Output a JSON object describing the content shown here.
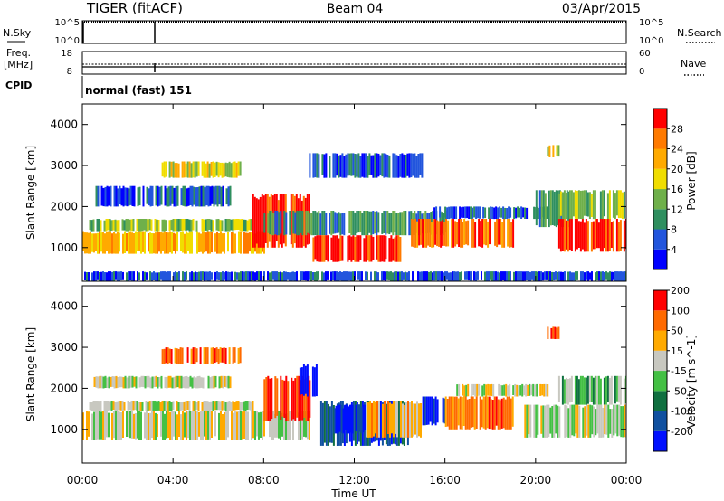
{
  "header": {
    "title": "TIGER (fitACF)",
    "beam": "Beam 04",
    "date": "03/Apr/2015"
  },
  "top_panels": {
    "nsky_label": "N.Sky",
    "nsky_ticks": [
      "10^5",
      "10^0"
    ],
    "nsearch_label": "N.Search",
    "nsearch_ticks": [
      "10^5",
      "10^0"
    ],
    "freq_label_1": "Freq.",
    "freq_label_2": "[MHz]",
    "freq_ticks": [
      "18",
      "8"
    ],
    "nave_label": "Nave",
    "nave_ticks": [
      "60",
      "0"
    ],
    "cpid_label": "CPID",
    "cpid_text": "normal (fast) 151"
  },
  "colors": {
    "power": [
      "#0000ff",
      "#2255dd",
      "#2f8f5f",
      "#6fb04a",
      "#f0dd00",
      "#ffaa00",
      "#ff7a00",
      "#ff0000"
    ],
    "velocity": [
      "#0010ff",
      "#1050a0",
      "#107040",
      "#44c044",
      "#c8c8c0",
      "#ffaa00",
      "#ff6a00",
      "#ff0000"
    ]
  },
  "chart_data": [
    {
      "type": "heatmap",
      "parameter": "Power",
      "ylabel": "Slant Range [km]",
      "yticks": [
        "4000",
        "3000",
        "2000",
        "1000"
      ],
      "ylim": [
        180,
        4500
      ],
      "xlim": [
        0,
        24
      ],
      "colorbar_label": "Power [dB]",
      "colorbar_ticks": [
        "28",
        "24",
        "20",
        "16",
        "12",
        "8",
        "4"
      ],
      "bands": [
        {
          "t0": 0.0,
          "t1": 8.0,
          "r0": 850,
          "r1": 1400,
          "level": 5
        },
        {
          "t0": 0.3,
          "t1": 7.5,
          "r0": 1400,
          "r1": 1700,
          "level": 3
        },
        {
          "t0": 0.5,
          "t1": 6.5,
          "r0": 2000,
          "r1": 2500,
          "level": 1
        },
        {
          "t0": 3.5,
          "t1": 7.0,
          "r0": 2700,
          "r1": 3100,
          "level": 4
        },
        {
          "t0": 7.5,
          "t1": 10.0,
          "r0": 1000,
          "r1": 2300,
          "level": 7
        },
        {
          "t0": 8.0,
          "t1": 16.0,
          "r0": 1300,
          "r1": 1900,
          "level": 2
        },
        {
          "t0": 10.0,
          "t1": 14.0,
          "r0": 650,
          "r1": 1300,
          "level": 7
        },
        {
          "t0": 10.0,
          "t1": 15.0,
          "r0": 2700,
          "r1": 3300,
          "level": 1
        },
        {
          "t0": 14.5,
          "t1": 19.0,
          "r0": 1000,
          "r1": 1700,
          "level": 6
        },
        {
          "t0": 15.5,
          "t1": 20.5,
          "r0": 1700,
          "r1": 2000,
          "level": 1
        },
        {
          "t0": 20.0,
          "t1": 21.5,
          "r0": 1500,
          "r1": 2400,
          "level": 2
        },
        {
          "t0": 20.5,
          "t1": 21.0,
          "r0": 3200,
          "r1": 3500,
          "level": 4
        },
        {
          "t0": 21.0,
          "t1": 24.0,
          "r0": 900,
          "r1": 1700,
          "level": 7
        },
        {
          "t0": 21.0,
          "t1": 24.0,
          "r0": 1700,
          "r1": 2400,
          "level": 3
        },
        {
          "t0": 0.0,
          "t1": 24.0,
          "r0": 180,
          "r1": 420,
          "level": 1
        }
      ]
    },
    {
      "type": "heatmap",
      "parameter": "Velocity",
      "ylabel": "Slant Range [km]",
      "yticks": [
        "4000",
        "3000",
        "2000",
        "1000"
      ],
      "ylim": [
        180,
        4500
      ],
      "xlim": [
        0,
        24
      ],
      "colorbar_label": "Velocity [m s^-1]",
      "colorbar_ticks": [
        "200",
        "100",
        "50",
        "15",
        "-15",
        "-50",
        "-100",
        "-200"
      ],
      "bands": [
        {
          "t0": 0.0,
          "t1": 10.0,
          "r0": 750,
          "r1": 1450,
          "level": 4
        },
        {
          "t0": 0.3,
          "t1": 7.5,
          "r0": 1450,
          "r1": 1700,
          "level": 4
        },
        {
          "t0": 0.5,
          "t1": 6.5,
          "r0": 2000,
          "r1": 2300,
          "level": 4
        },
        {
          "t0": 3.5,
          "t1": 7.0,
          "r0": 2600,
          "r1": 3000,
          "level": 6
        },
        {
          "t0": 8.0,
          "t1": 10.0,
          "r0": 1200,
          "r1": 2300,
          "level": 7
        },
        {
          "t0": 9.5,
          "t1": 10.3,
          "r0": 1800,
          "r1": 2600,
          "level": 0
        },
        {
          "t0": 10.5,
          "t1": 14.5,
          "r0": 600,
          "r1": 1700,
          "level": 1
        },
        {
          "t0": 11.0,
          "t1": 12.5,
          "r0": 900,
          "r1": 1600,
          "level": 0
        },
        {
          "t0": 12.5,
          "t1": 15.0,
          "r0": 800,
          "r1": 1700,
          "level": 5
        },
        {
          "t0": 15.0,
          "t1": 16.0,
          "r0": 1100,
          "r1": 1800,
          "level": 0
        },
        {
          "t0": 16.0,
          "t1": 19.0,
          "r0": 1000,
          "r1": 1800,
          "level": 6
        },
        {
          "t0": 16.5,
          "t1": 20.5,
          "r0": 1800,
          "r1": 2100,
          "level": 4
        },
        {
          "t0": 19.5,
          "t1": 24.0,
          "r0": 800,
          "r1": 1600,
          "level": 4
        },
        {
          "t0": 20.5,
          "t1": 21.0,
          "r0": 3200,
          "r1": 3500,
          "level": 7
        },
        {
          "t0": 21.0,
          "t1": 24.0,
          "r0": 1600,
          "r1": 2300,
          "level": 3
        }
      ]
    }
  ],
  "x_axis": {
    "ticks": [
      "00:00",
      "04:00",
      "08:00",
      "12:00",
      "16:00",
      "20:00",
      "00:00"
    ],
    "label": "Time UT"
  }
}
